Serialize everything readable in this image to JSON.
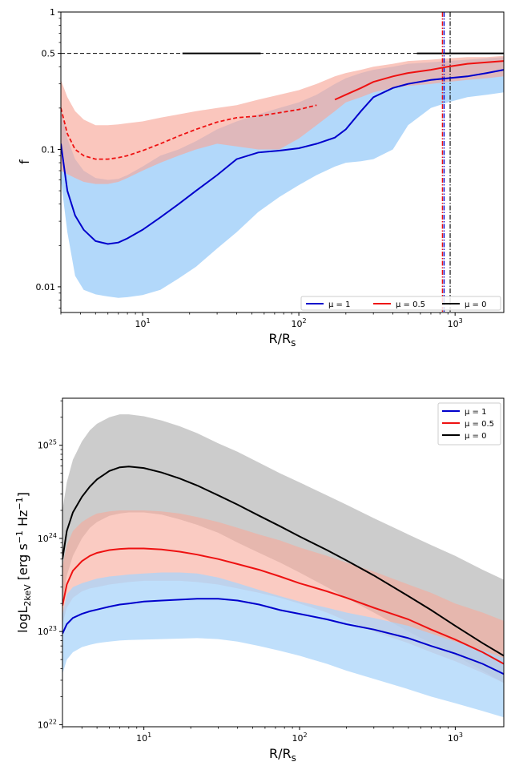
{
  "colors": {
    "mu1": "#0000cc",
    "mu05": "#ee1111",
    "mu0": "#000000",
    "band_mu1": "#aad4fa",
    "band_mu05": "#f7a899",
    "band_mu0": "#bfbfbf"
  },
  "chart_data": [
    {
      "type": "line",
      "panel": "top",
      "xscale": "log",
      "yscale": "log",
      "xlim": [
        3,
        2050
      ],
      "ylim": [
        0.0065,
        1
      ],
      "xlabel": "R/R_s",
      "ylabel": "f",
      "x_ticks": [
        {
          "value": 10,
          "base": "10",
          "exp": "1"
        },
        {
          "value": 100,
          "base": "10",
          "exp": "2"
        },
        {
          "value": 1000,
          "base": "10",
          "exp": "3"
        }
      ],
      "y_ticks": [
        {
          "value": 0.01,
          "label": "0.01"
        },
        {
          "value": 0.1,
          "label": "0.1"
        },
        {
          "value": 0.5,
          "label": "0.5"
        },
        {
          "value": 1,
          "label": "1"
        }
      ],
      "legend": {
        "placement": "lower-right",
        "layout": "horizontal",
        "entries": [
          "μ = 1",
          "μ = 0.5",
          "μ = 0"
        ]
      },
      "reference_lines": {
        "hline_y": 0.5,
        "mu0_solid_segment_x": [
          18,
          57
        ],
        "mu0_solid_segment_x2": [
          570,
          2050
        ],
        "vline_mu1_x": 850,
        "vline_mu05_x": 830,
        "vline_mu0_x": 930
      },
      "series": [
        {
          "name": "μ = 1",
          "color_key": "mu1",
          "band_key": "band_mu1",
          "x": [
            3,
            3.3,
            3.7,
            4.2,
            5,
            6,
            7,
            8,
            10,
            13,
            17,
            22,
            30,
            40,
            55,
            75,
            100,
            130,
            170,
            200,
            250,
            300,
            400,
            500,
            700,
            900,
            1200,
            1600,
            2050
          ],
          "y": [
            0.11,
            0.05,
            0.033,
            0.026,
            0.0215,
            0.0205,
            0.021,
            0.0225,
            0.026,
            0.032,
            0.04,
            0.05,
            0.065,
            0.085,
            0.095,
            0.098,
            0.102,
            0.11,
            0.122,
            0.14,
            0.19,
            0.24,
            0.28,
            0.3,
            0.32,
            0.33,
            0.34,
            0.36,
            0.38
          ],
          "lower": [
            0.06,
            0.025,
            0.012,
            0.0095,
            0.0088,
            0.0085,
            0.0083,
            0.0084,
            0.0087,
            0.0095,
            0.0115,
            0.014,
            0.019,
            0.025,
            0.035,
            0.045,
            0.055,
            0.065,
            0.075,
            0.08,
            0.082,
            0.085,
            0.1,
            0.15,
            0.2,
            0.22,
            0.24,
            0.25,
            0.26
          ],
          "upper": [
            0.2,
            0.12,
            0.085,
            0.07,
            0.062,
            0.06,
            0.061,
            0.065,
            0.075,
            0.09,
            0.1,
            0.115,
            0.14,
            0.16,
            0.18,
            0.2,
            0.22,
            0.25,
            0.3,
            0.33,
            0.36,
            0.38,
            0.4,
            0.42,
            0.43,
            0.44,
            0.45,
            0.46,
            0.47
          ]
        },
        {
          "name": "μ = 0.5",
          "color_key": "mu05",
          "band_key": "band_mu05",
          "dashed_until_x": 150,
          "x": [
            3,
            3.3,
            3.7,
            4.2,
            5,
            6,
            7,
            8,
            10,
            13,
            17,
            22,
            30,
            40,
            55,
            75,
            100,
            130,
            170,
            200,
            250,
            300,
            400,
            500,
            700,
            900,
            1200,
            1600,
            2050
          ],
          "y": [
            0.2,
            0.13,
            0.1,
            0.09,
            0.085,
            0.085,
            0.087,
            0.09,
            0.098,
            0.11,
            0.125,
            0.14,
            0.158,
            0.17,
            0.175,
            0.185,
            0.195,
            0.21,
            0.23,
            0.25,
            0.28,
            0.31,
            0.34,
            0.36,
            0.38,
            0.4,
            0.42,
            0.43,
            0.44
          ],
          "lower": [
            0.07,
            0.066,
            0.062,
            0.058,
            0.056,
            0.056,
            0.058,
            0.062,
            0.07,
            0.08,
            0.09,
            0.1,
            0.11,
            0.105,
            0.1,
            0.1,
            0.12,
            0.15,
            0.19,
            0.22,
            0.24,
            0.26,
            0.28,
            0.29,
            0.3,
            0.31,
            0.32,
            0.33,
            0.34
          ],
          "upper": [
            0.32,
            0.24,
            0.19,
            0.165,
            0.15,
            0.15,
            0.152,
            0.155,
            0.16,
            0.17,
            0.18,
            0.19,
            0.2,
            0.21,
            0.23,
            0.25,
            0.27,
            0.3,
            0.34,
            0.36,
            0.38,
            0.4,
            0.42,
            0.44,
            0.45,
            0.46,
            0.47,
            0.47,
            0.48
          ]
        }
      ]
    },
    {
      "type": "line",
      "panel": "bottom",
      "xscale": "log",
      "yscale": "log",
      "xlim": [
        3,
        2050
      ],
      "ylim": [
        9.5e+21,
        3.2e+25
      ],
      "xlabel": "R/R_s",
      "ylabel": "logL_2keV [erg s^-1 Hz^-1]",
      "x_ticks": [
        {
          "value": 10,
          "base": "10",
          "exp": "1"
        },
        {
          "value": 100,
          "base": "10",
          "exp": "2"
        },
        {
          "value": 1000,
          "base": "10",
          "exp": "3"
        }
      ],
      "y_ticks": [
        {
          "value": 1e+22,
          "base": "10",
          "exp": "22"
        },
        {
          "value": 1e+23,
          "base": "10",
          "exp": "23"
        },
        {
          "value": 1e+24,
          "base": "10",
          "exp": "24"
        },
        {
          "value": 1e+25,
          "base": "10",
          "exp": "25"
        }
      ],
      "legend": {
        "placement": "upper-right",
        "layout": "vertical",
        "entries": [
          "μ = 1",
          "μ = 0.5",
          "μ = 0"
        ]
      },
      "series": [
        {
          "name": "μ = 0",
          "color_key": "mu0",
          "band_key": "band_mu0",
          "x": [
            3,
            3.2,
            3.5,
            4,
            4.5,
            5,
            6,
            7,
            8,
            10,
            13,
            17,
            22,
            30,
            40,
            55,
            75,
            100,
            150,
            200,
            300,
            500,
            700,
            1000,
            1500,
            2050
          ],
          "y": [
            6e+23,
            1.2e+24,
            1.9e+24,
            2.8e+24,
            3.6e+24,
            4.3e+24,
            5.3e+24,
            5.8e+24,
            5.9e+24,
            5.7e+24,
            5.1e+24,
            4.4e+24,
            3.7e+24,
            2.9e+24,
            2.3e+24,
            1.75e+24,
            1.35e+24,
            1.05e+24,
            7.5e+23,
            5.8e+23,
            4e+23,
            2.4e+23,
            1.7e+23,
            1.15e+23,
            7.5e+22,
            5.5e+22
          ],
          "lower": [
            2e+23,
            4e+23,
            6.5e+23,
            1e+24,
            1.3e+24,
            1.5e+24,
            1.75e+24,
            1.85e+24,
            1.9e+24,
            1.9e+24,
            1.8e+24,
            1.6e+24,
            1.4e+24,
            1.15e+24,
            9e+23,
            7e+23,
            5.5e+23,
            4.3e+23,
            3e+23,
            2.3e+23,
            1.6e+23,
            1e+23,
            7.5e+22,
            5.5e+22,
            3.8e+22,
            2.8e+22
          ],
          "upper": [
            2e+24,
            4e+24,
            7e+24,
            1.1e+25,
            1.45e+25,
            1.7e+25,
            2e+25,
            2.15e+25,
            2.15e+25,
            2.05e+25,
            1.85e+25,
            1.6e+25,
            1.35e+25,
            1.05e+25,
            8.5e+24,
            6.5e+24,
            5e+24,
            4e+24,
            2.9e+24,
            2.3e+24,
            1.65e+24,
            1.1e+24,
            8.5e+23,
            6.5e+23,
            4.6e+23,
            3.6e+23
          ]
        },
        {
          "name": "μ = 0.5",
          "color_key": "mu05",
          "band_key": "band_mu05",
          "x": [
            3,
            3.2,
            3.5,
            4,
            4.5,
            5,
            6,
            7,
            8,
            10,
            13,
            17,
            22,
            30,
            40,
            55,
            75,
            100,
            150,
            200,
            300,
            500,
            700,
            1000,
            1500,
            2050
          ],
          "y": [
            1.9e+23,
            3.2e+23,
            4.5e+23,
            5.7e+23,
            6.5e+23,
            7e+23,
            7.5e+23,
            7.7e+23,
            7.8e+23,
            7.8e+23,
            7.6e+23,
            7.2e+23,
            6.7e+23,
            6e+23,
            5.3e+23,
            4.6e+23,
            3.9e+23,
            3.3e+23,
            2.7e+23,
            2.3e+23,
            1.8e+23,
            1.35e+23,
            1.05e+23,
            8.2e+22,
            6e+22,
            4.5e+22
          ],
          "lower": [
            1.2e+23,
            1.8e+23,
            2.3e+23,
            2.7e+23,
            2.9e+23,
            3e+23,
            3.2e+23,
            3.3e+23,
            3.4e+23,
            3.5e+23,
            3.5e+23,
            3.5e+23,
            3.4e+23,
            3.2e+23,
            2.9e+23,
            2.6e+23,
            2.3e+23,
            2e+23,
            1.6e+23,
            1.3e+23,
            1e+23,
            7.5e+22,
            6e+22,
            4.8e+22,
            3.6e+22,
            2.8e+22
          ],
          "upper": [
            5e+23,
            8.5e+23,
            1.2e+24,
            1.5e+24,
            1.7e+24,
            1.85e+24,
            1.95e+24,
            2e+24,
            2e+24,
            2e+24,
            1.95e+24,
            1.85e+24,
            1.7e+24,
            1.5e+24,
            1.3e+24,
            1.1e+24,
            9.5e+23,
            8e+23,
            6.5e+23,
            5.5e+23,
            4.4e+23,
            3.2e+23,
            2.6e+23,
            2e+23,
            1.6e+23,
            1.3e+23
          ]
        },
        {
          "name": "μ = 1",
          "color_key": "mu1",
          "band_key": "band_mu1",
          "x": [
            3,
            3.2,
            3.5,
            4,
            4.5,
            5,
            6,
            7,
            8,
            10,
            13,
            17,
            22,
            30,
            40,
            55,
            75,
            100,
            150,
            200,
            300,
            500,
            700,
            1000,
            1500,
            2050
          ],
          "y": [
            9.5e+22,
            1.2e+23,
            1.4e+23,
            1.55e+23,
            1.65e+23,
            1.72e+23,
            1.85e+23,
            1.95e+23,
            2e+23,
            2.1e+23,
            2.15e+23,
            2.2e+23,
            2.25e+23,
            2.25e+23,
            2.15e+23,
            1.95e+23,
            1.7e+23,
            1.55e+23,
            1.35e+23,
            1.2e+23,
            1.05e+23,
            8.5e+22,
            7e+22,
            5.8e+22,
            4.5e+22,
            3.5e+22
          ],
          "lower": [
            3.5e+22,
            5e+22,
            6e+22,
            6.8e+22,
            7.2e+22,
            7.5e+22,
            7.8e+22,
            8e+22,
            8.1e+22,
            8.2e+22,
            8.3e+22,
            8.4e+22,
            8.5e+22,
            8.3e+22,
            7.8e+22,
            7e+22,
            6.2e+22,
            5.5e+22,
            4.5e+22,
            3.8e+22,
            3.1e+22,
            2.4e+22,
            2e+22,
            1.7e+22,
            1.4e+22,
            1.2e+22
          ],
          "upper": [
            1.5e+23,
            2.5e+23,
            3e+23,
            3.3e+23,
            3.5e+23,
            3.7e+23,
            3.9e+23,
            4e+23,
            4.1e+23,
            4.2e+23,
            4.3e+23,
            4.3e+23,
            4.2e+23,
            3.8e+23,
            3.3e+23,
            2.8e+23,
            2.4e+23,
            2.1e+23,
            1.8e+23,
            1.6e+23,
            1.4e+23,
            1.15e+23,
            9.5e+22,
            7.8e+22,
            6.3e+22,
            5.2e+22
          ]
        }
      ]
    }
  ]
}
